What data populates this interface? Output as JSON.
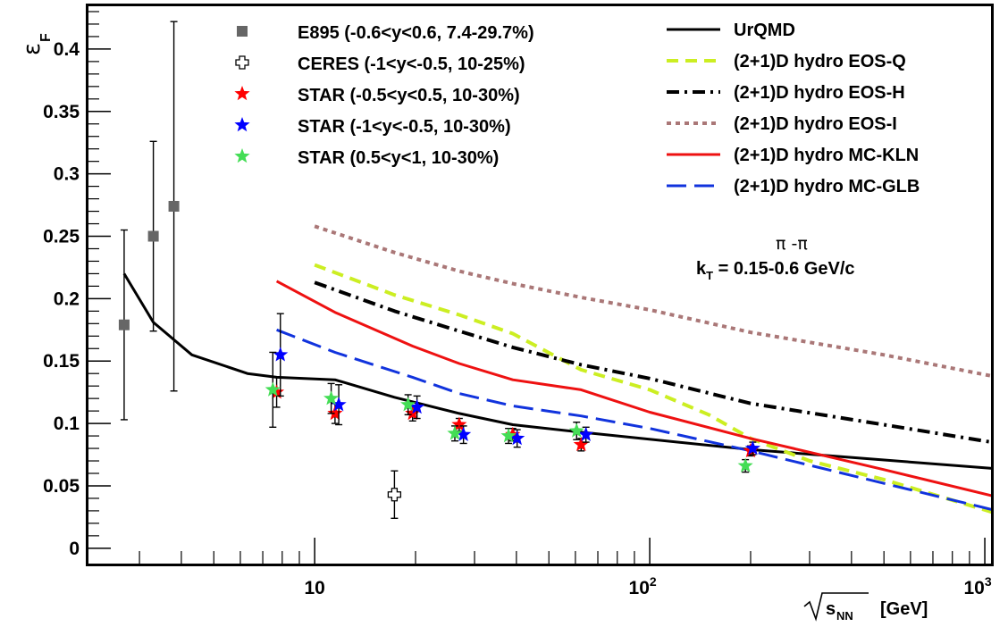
{
  "chart_data": {
    "type": "scatter",
    "title": "",
    "xlabel": "[GeV]",
    "xlabel_radical": "s",
    "xlabel_radical_sub": "NN",
    "ylabel": "ε",
    "ylabel_sub": "F",
    "xscale": "log",
    "xlim": [
      2.1,
      1050
    ],
    "ylim": [
      -0.013,
      0.435
    ],
    "grid": false,
    "legend_placement": "top",
    "annotation": {
      "particle": "π -π",
      "kt_main": "k",
      "kt_sub": "T",
      "kt_rest": " = 0.15-0.6 GeV/c"
    },
    "y_ticks": [
      {
        "v": 0,
        "label": "0"
      },
      {
        "v": 0.05,
        "label": "0.05"
      },
      {
        "v": 0.1,
        "label": "0.1"
      },
      {
        "v": 0.15,
        "label": "0.15"
      },
      {
        "v": 0.2,
        "label": "0.2"
      },
      {
        "v": 0.25,
        "label": "0.25"
      },
      {
        "v": 0.3,
        "label": "0.3"
      },
      {
        "v": 0.35,
        "label": "0.35"
      },
      {
        "v": 0.4,
        "label": "0.4"
      }
    ],
    "x_tick_labels": [
      {
        "v": 10,
        "base": "10",
        "exp": ""
      },
      {
        "v": 100,
        "base": "10",
        "exp": "2"
      },
      {
        "v": 1000,
        "base": "10",
        "exp": "3"
      }
    ],
    "data_series": [
      {
        "name": "E895 (-0.6<y<0.6, 7.4-29.7%)",
        "marker": "square",
        "color": "#666666",
        "points": [
          {
            "x": 2.7,
            "y": 0.179,
            "err": 0.076
          },
          {
            "x": 3.3,
            "y": 0.25,
            "err": 0.076
          },
          {
            "x": 3.8,
            "y": 0.274,
            "err": 0.148
          }
        ]
      },
      {
        "name": "CERES (-1<y<-0.5, 10-25%)",
        "marker": "open-cross",
        "color": "#000000",
        "points": [
          {
            "x": 17.3,
            "y": 0.043,
            "err": 0.019
          }
        ]
      },
      {
        "name": "STAR (-0.5<y<0.5, 10-30%)",
        "marker": "star",
        "color": "#ff0000",
        "points": [
          {
            "x": 7.7,
            "y": 0.125,
            "err": 0.012
          },
          {
            "x": 11.5,
            "y": 0.108,
            "err": 0.008
          },
          {
            "x": 19.6,
            "y": 0.108,
            "err": 0.006
          },
          {
            "x": 27,
            "y": 0.099,
            "err": 0.005
          },
          {
            "x": 39,
            "y": 0.091,
            "err": 0.005
          },
          {
            "x": 62.4,
            "y": 0.083,
            "err": 0.005
          },
          {
            "x": 200,
            "y": 0.078,
            "err": 0.004
          }
        ]
      },
      {
        "name": "STAR (-1<y<-0.5, 10-30%)",
        "marker": "star",
        "color": "#0000ff",
        "points": [
          {
            "x": 7.9,
            "y": 0.155,
            "err": 0.033
          },
          {
            "x": 11.8,
            "y": 0.115,
            "err": 0.016
          },
          {
            "x": 20.2,
            "y": 0.113,
            "err": 0.009
          },
          {
            "x": 27.8,
            "y": 0.091,
            "err": 0.007
          },
          {
            "x": 40.2,
            "y": 0.088,
            "err": 0.007
          },
          {
            "x": 64.5,
            "y": 0.091,
            "err": 0.006
          },
          {
            "x": 203,
            "y": 0.08,
            "err": 0.005
          }
        ]
      },
      {
        "name": "STAR (0.5<y<1, 10-30%)",
        "marker": "star",
        "color": "#44dd55",
        "points": [
          {
            "x": 7.5,
            "y": 0.127,
            "err": 0.03
          },
          {
            "x": 11.2,
            "y": 0.12,
            "err": 0.012
          },
          {
            "x": 19.0,
            "y": 0.115,
            "err": 0.008
          },
          {
            "x": 26.2,
            "y": 0.092,
            "err": 0.006
          },
          {
            "x": 37.9,
            "y": 0.09,
            "err": 0.006
          },
          {
            "x": 60.5,
            "y": 0.094,
            "err": 0.007
          },
          {
            "x": 193,
            "y": 0.066,
            "err": 0.005
          }
        ]
      }
    ],
    "curve_series": [
      {
        "name": "UrQMD",
        "color": "#000000",
        "dash": "",
        "width": 3,
        "x": [
          2.7,
          3.3,
          4.3,
          6.3,
          7.7,
          11.5,
          17.3,
          27,
          39,
          62.4,
          200,
          1050
        ],
        "y": [
          0.22,
          0.181,
          0.155,
          0.14,
          0.137,
          0.135,
          0.121,
          0.108,
          0.099,
          0.093,
          0.079,
          0.064
        ]
      },
      {
        "name": "(2+1)D hydro EOS-Q",
        "color": "#ccee22",
        "dash": "13,8",
        "width": 4,
        "x": [
          10,
          17.3,
          27,
          39,
          62.4,
          100,
          150,
          200,
          300,
          500,
          1050
        ],
        "y": [
          0.227,
          0.203,
          0.187,
          0.172,
          0.143,
          0.127,
          0.107,
          0.088,
          0.07,
          0.055,
          0.029
        ]
      },
      {
        "name": "(2+1)D hydro EOS-H",
        "color": "#000000",
        "dash": "14,6,3,6",
        "width": 4,
        "x": [
          10,
          17.3,
          27,
          39,
          62.4,
          100,
          200,
          500,
          1050
        ],
        "y": [
          0.213,
          0.19,
          0.174,
          0.161,
          0.147,
          0.136,
          0.116,
          0.099,
          0.085
        ]
      },
      {
        "name": "(2+1)D hydro EOS-I",
        "color": "#aa7777",
        "dash": "5,5",
        "width": 4,
        "x": [
          10,
          17.3,
          27,
          39,
          62.4,
          100,
          200,
          500,
          1050
        ],
        "y": [
          0.258,
          0.237,
          0.222,
          0.212,
          0.201,
          0.191,
          0.173,
          0.155,
          0.138
        ]
      },
      {
        "name": "(2+1)D hydro MC-KLN",
        "color": "#ee1111",
        "dash": "",
        "width": 3,
        "x": [
          7.7,
          11.5,
          19.6,
          27,
          39,
          62.4,
          100,
          200,
          500,
          1050
        ],
        "y": [
          0.214,
          0.189,
          0.162,
          0.148,
          0.135,
          0.127,
          0.109,
          0.088,
          0.063,
          0.042
        ]
      },
      {
        "name": "(2+1)D hydro MC-GLB",
        "color": "#1133dd",
        "dash": "22,9",
        "width": 3,
        "x": [
          7.7,
          11.5,
          19.6,
          27,
          39,
          62.4,
          100,
          200,
          500,
          1050
        ],
        "y": [
          0.175,
          0.157,
          0.137,
          0.124,
          0.114,
          0.106,
          0.096,
          0.078,
          0.052,
          0.031
        ]
      }
    ]
  }
}
